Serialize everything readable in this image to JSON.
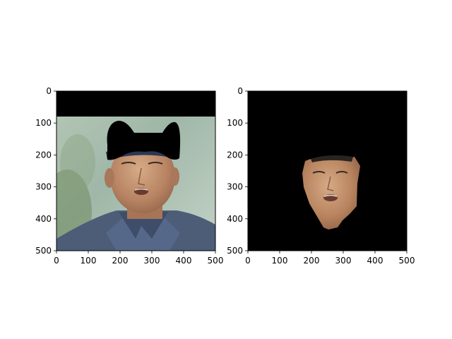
{
  "chart_data": [
    {
      "type": "image",
      "content": "cropped face photo: man in dark blue cap with mouth slightly open, black blob masking the cap, black band across the top rows",
      "xlim": [
        0,
        500
      ],
      "ylim": [
        500,
        0
      ],
      "xticks": [
        "0",
        "100",
        "200",
        "300",
        "400",
        "500"
      ],
      "yticks": [
        "0",
        "100",
        "200",
        "300",
        "400",
        "500"
      ],
      "title": "",
      "xlabel": "",
      "ylabel": ""
    },
    {
      "type": "image",
      "content": "segmented face region on black background",
      "xlim": [
        0,
        500
      ],
      "ylim": [
        500,
        0
      ],
      "xticks": [
        "0",
        "100",
        "200",
        "300",
        "400",
        "500"
      ],
      "yticks": [
        "0",
        "100",
        "200",
        "300",
        "400",
        "500"
      ],
      "title": "",
      "xlabel": "",
      "ylabel": ""
    }
  ],
  "colors": {
    "sky": "#a9bfae",
    "shirt": "#4f5f78",
    "cap": "#2f3a58",
    "skin": "#c09070",
    "mask": "#000000"
  }
}
